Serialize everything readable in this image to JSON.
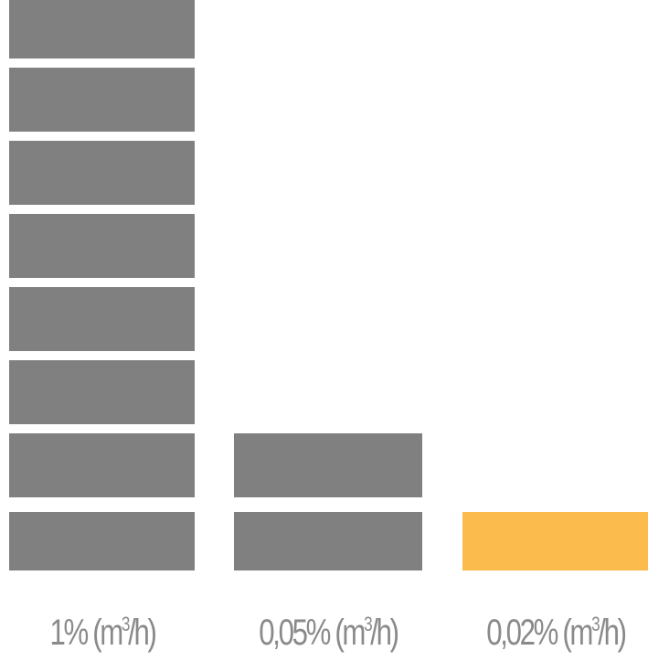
{
  "chart_data": {
    "type": "bar",
    "categories": [
      "1% (m³/h)",
      "0,05% (m³/h)",
      "0,02% (m³/h)"
    ],
    "category_parts": [
      {
        "prefix": "1% (m",
        "sup": "3",
        "suffix": "/h)"
      },
      {
        "prefix": "0,05% (m",
        "sup": "3",
        "suffix": "/h)"
      },
      {
        "prefix": "0,02% (m",
        "sup": "3",
        "suffix": "/h)"
      }
    ],
    "values": [
      8,
      2,
      1
    ],
    "bar_colors": [
      "#808080",
      "#808080",
      "#fbbb4d"
    ],
    "style": "stacked-blocks",
    "title": "",
    "xlabel": "",
    "ylabel": ""
  }
}
